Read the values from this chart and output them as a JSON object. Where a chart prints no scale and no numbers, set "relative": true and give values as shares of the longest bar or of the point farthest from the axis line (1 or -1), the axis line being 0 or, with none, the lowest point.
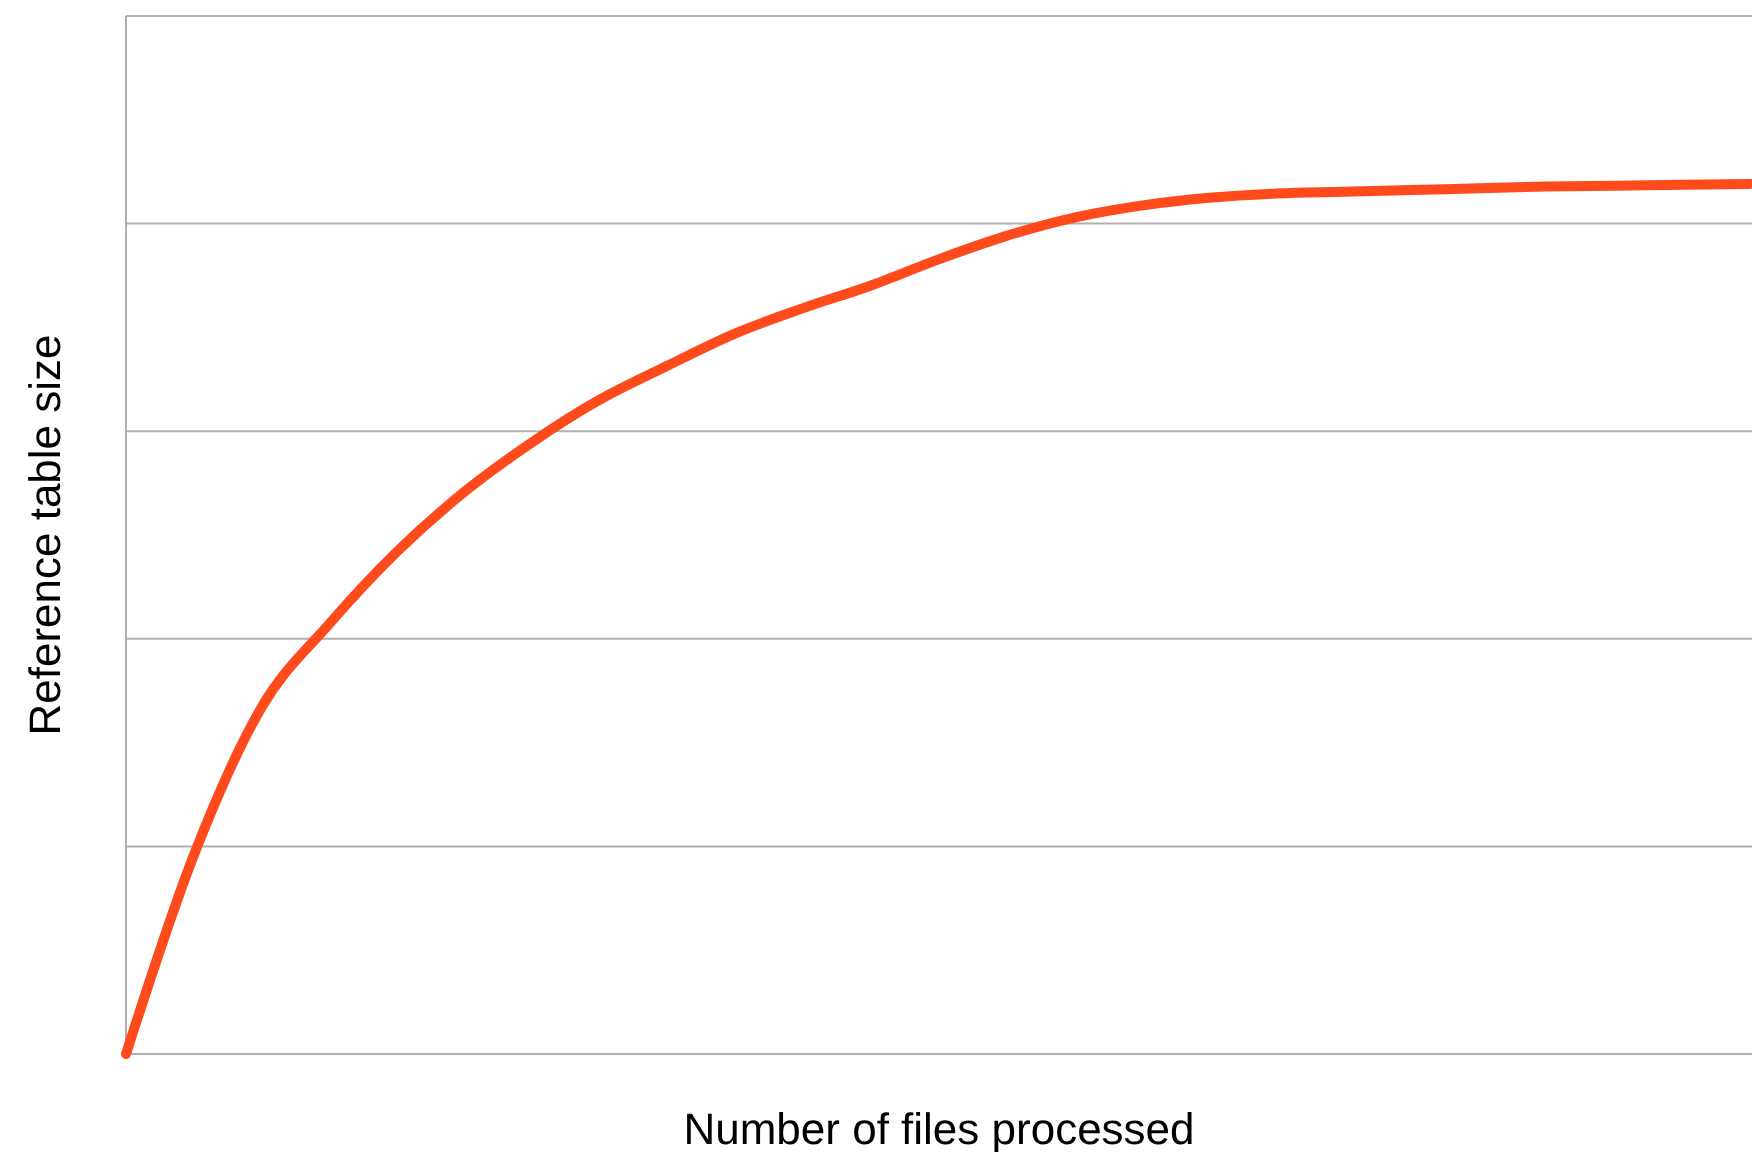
{
  "chart_data": {
    "type": "line",
    "relative": true,
    "xlabel": "Number of files processed",
    "ylabel": "Reference table size",
    "grid": "y",
    "marker": "none",
    "line_style": "solid",
    "categories": [
      null,
      null,
      null,
      null,
      null,
      null,
      null,
      null,
      null,
      null,
      null,
      null,
      null,
      null,
      null,
      null,
      null,
      null,
      null,
      null,
      null,
      null,
      null,
      null,
      null
    ],
    "series": [
      {
        "color": "#ff4a1c",
        "values": [
          0,
          0.228,
          0.398,
          0.494,
          0.577,
          0.646,
          0.703,
          0.752,
          0.791,
          0.828,
          0.857,
          0.883,
          0.913,
          0.94,
          0.961,
          0.975,
          0.984,
          0.989,
          0.991,
          0.993,
          0.995,
          0.997,
          0.998,
          0.999,
          1
        ]
      }
    ]
  }
}
